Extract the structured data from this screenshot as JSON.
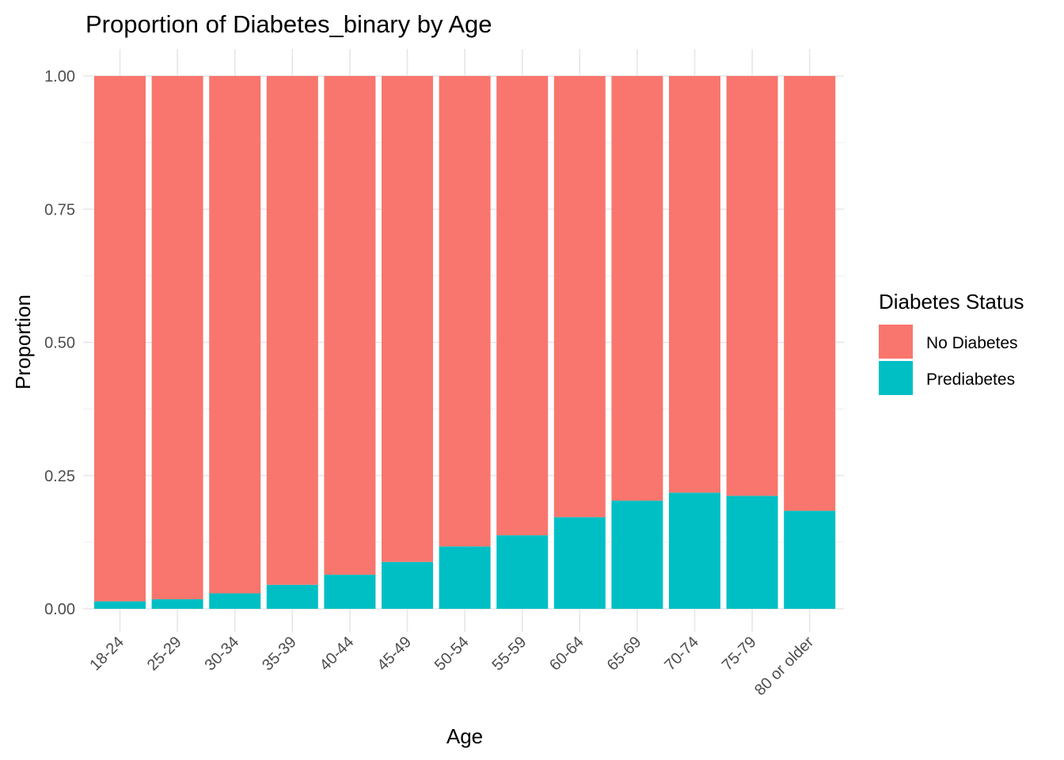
{
  "chart_data": {
    "type": "bar",
    "stacked": true,
    "title": "Proportion of Diabetes_binary by Age",
    "xlabel": "Age",
    "ylabel": "Proportion",
    "ylim": [
      0,
      1
    ],
    "y_ticks": [
      0,
      0.25,
      0.5,
      0.75,
      1
    ],
    "y_tick_labels": [
      "0.00",
      "0.25",
      "0.50",
      "0.75",
      "1.00"
    ],
    "grid": true,
    "legend": {
      "title": "Diabetes Status",
      "placement": "right"
    },
    "categories": [
      "18-24",
      "25-29",
      "30-34",
      "35-39",
      "40-44",
      "45-49",
      "50-54",
      "55-59",
      "60-64",
      "65-69",
      "70-74",
      "75-79",
      "80 or older"
    ],
    "series": [
      {
        "name": "No Diabetes",
        "color": "#F8766D",
        "values": [
          0.986,
          0.982,
          0.971,
          0.955,
          0.936,
          0.912,
          0.883,
          0.862,
          0.828,
          0.797,
          0.782,
          0.788,
          0.816
        ]
      },
      {
        "name": "Prediabetes",
        "color": "#00BFC4",
        "values": [
          0.014,
          0.018,
          0.029,
          0.045,
          0.064,
          0.088,
          0.117,
          0.138,
          0.172,
          0.203,
          0.218,
          0.212,
          0.184
        ]
      }
    ]
  }
}
